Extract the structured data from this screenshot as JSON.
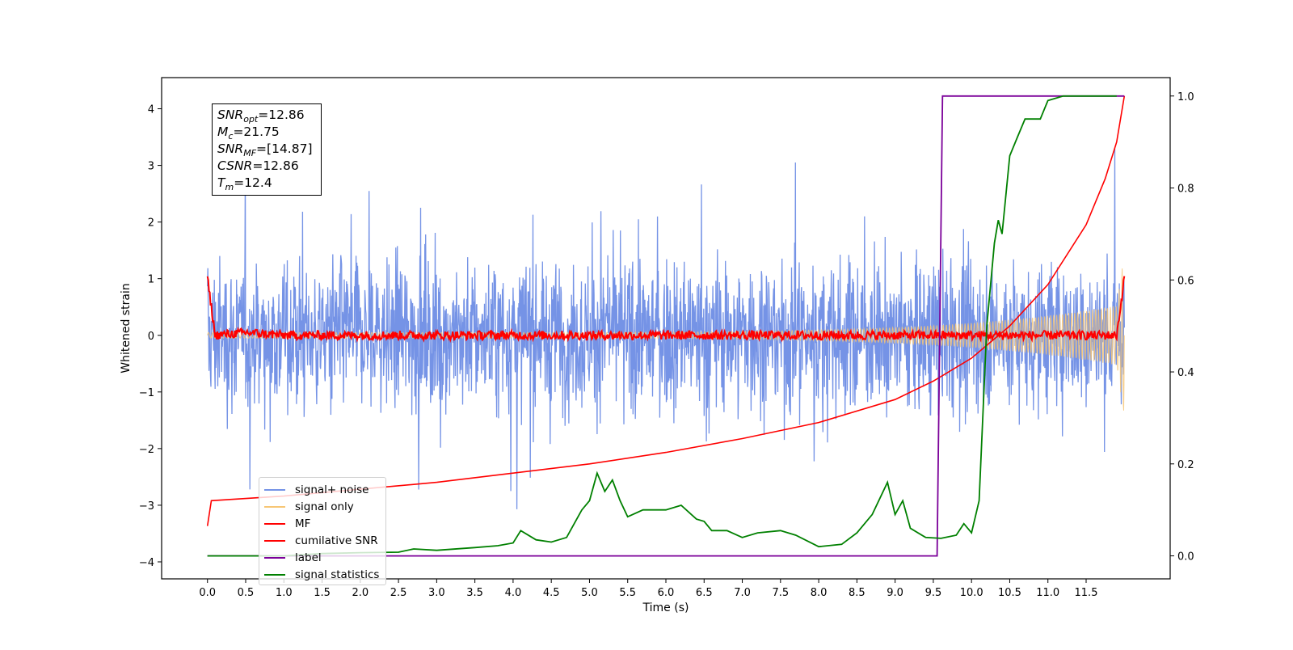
{
  "chart_data": {
    "type": "line",
    "xlabel": "Time (s)",
    "ylabel": "Whitened strain",
    "xlim": [
      -0.6,
      12.6
    ],
    "ylim": [
      -4.3,
      4.55
    ],
    "y2lim": [
      -0.05,
      1.04
    ],
    "x_ticks": [
      "0.0",
      "0.5",
      "1.0",
      "1.5",
      "2.0",
      "2.5",
      "3.0",
      "3.5",
      "4.0",
      "4.5",
      "5.0",
      "5.5",
      "6.0",
      "6.5",
      "7.0",
      "7.5",
      "8.0",
      "8.5",
      "9.0",
      "9.5",
      "10.0",
      "10.5",
      "11.0",
      "11.5"
    ],
    "y_ticks": [
      "4",
      "3",
      "2",
      "1",
      "0",
      "−1",
      "−2",
      "−3",
      "−4"
    ],
    "y2_ticks": [
      "1.0",
      "0.8",
      "0.6",
      "0.4",
      "0.2",
      "0.0"
    ],
    "grid": false,
    "legend_position": "lower-left",
    "series": [
      {
        "name": "signal+ noise",
        "axis": "left",
        "color": "#7593e6",
        "description": "noise envelope ~ ±1.3 (peaks to ±3.8) from 0.0 to 12.0 s"
      },
      {
        "name": "signal only",
        "axis": "left",
        "color": "#f7c675",
        "description": "chirp, amplitude growing from ~0.05 to ~1.5 at 12.0 s"
      },
      {
        "name": "MF",
        "axis": "left",
        "color": "#ff0000",
        "x": [
          0.0,
          0.05,
          0.1,
          0.5,
          1.0,
          2.0,
          4.0,
          6.0,
          8.0,
          10.0,
          11.0,
          11.9,
          12.0
        ],
        "y": [
          1.0,
          0.5,
          0.0,
          0.05,
          0.0,
          0.0,
          0.0,
          0.0,
          0.0,
          0.0,
          0.0,
          0.0,
          1.0
        ]
      },
      {
        "name": "cumilative SNR",
        "axis": "right",
        "color": "#ff0000",
        "x": [
          0.0,
          0.05,
          1.0,
          2.0,
          3.0,
          4.0,
          5.0,
          6.0,
          7.0,
          8.0,
          9.0,
          9.5,
          10.0,
          10.5,
          11.0,
          11.5,
          11.75,
          11.9,
          12.0
        ],
        "y": [
          0.065,
          0.12,
          0.13,
          0.145,
          0.16,
          0.18,
          0.2,
          0.225,
          0.255,
          0.29,
          0.34,
          0.38,
          0.43,
          0.5,
          0.59,
          0.72,
          0.82,
          0.9,
          1.0
        ]
      },
      {
        "name": "label",
        "axis": "right",
        "color": "#7b0099",
        "x": [
          0.0,
          9.55,
          9.62,
          12.0
        ],
        "y": [
          0.0,
          0.0,
          1.0,
          1.0
        ]
      },
      {
        "name": "signal statistics",
        "axis": "right",
        "color": "#008000",
        "x": [
          0.0,
          0.5,
          1.0,
          1.5,
          2.0,
          2.5,
          2.7,
          3.0,
          3.5,
          3.8,
          4.0,
          4.1,
          4.3,
          4.5,
          4.7,
          4.9,
          5.0,
          5.1,
          5.2,
          5.3,
          5.4,
          5.5,
          5.7,
          6.0,
          6.2,
          6.4,
          6.5,
          6.6,
          6.8,
          7.0,
          7.2,
          7.5,
          7.7,
          8.0,
          8.3,
          8.5,
          8.7,
          8.9,
          9.0,
          9.1,
          9.2,
          9.4,
          9.6,
          9.8,
          9.9,
          10.0,
          10.1,
          10.2,
          10.3,
          10.35,
          10.4,
          10.5,
          10.6,
          10.7,
          10.9,
          11.0,
          11.2,
          11.5,
          11.9
        ],
        "y": [
          0.0,
          0.0,
          0.0,
          0.005,
          0.007,
          0.008,
          0.015,
          0.012,
          0.018,
          0.022,
          0.028,
          0.055,
          0.035,
          0.03,
          0.04,
          0.1,
          0.12,
          0.18,
          0.14,
          0.165,
          0.12,
          0.085,
          0.1,
          0.1,
          0.11,
          0.08,
          0.075,
          0.055,
          0.055,
          0.04,
          0.05,
          0.055,
          0.045,
          0.02,
          0.025,
          0.05,
          0.09,
          0.16,
          0.09,
          0.12,
          0.06,
          0.04,
          0.038,
          0.045,
          0.07,
          0.05,
          0.12,
          0.5,
          0.68,
          0.73,
          0.7,
          0.87,
          0.91,
          0.95,
          0.95,
          0.99,
          1.0,
          1.0,
          1.0
        ]
      }
    ],
    "annotation": {
      "lines": [
        {
          "key": "SNR",
          "sub": "opt",
          "value": "=12.86"
        },
        {
          "key": "M",
          "sub": "c",
          "value": "=21.75"
        },
        {
          "key": "SNR",
          "sub": "MF",
          "value": "=[14.87]"
        },
        {
          "key": "CSNR",
          "sub": "",
          "value": "=12.86"
        },
        {
          "key": "T",
          "sub": "m",
          "value": "=12.4"
        }
      ]
    }
  }
}
